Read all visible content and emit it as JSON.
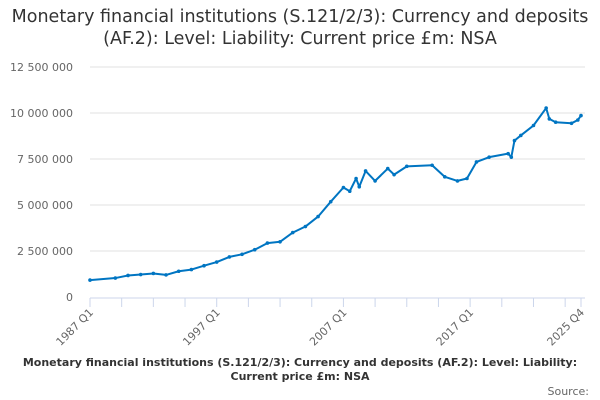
{
  "chart_data": {
    "type": "line",
    "title": "Monetary financial institutions (S.121/2/3): Currency and deposits (AF.2): Level: Liability: Current price £m: NSA",
    "caption": "Monetary financial institutions (S.121/2/3): Currency and deposits (AF.2): Level: Liability: Current price £m: NSA",
    "source_label": "Source:",
    "xlabel": "",
    "ylabel": "",
    "x_range": [
      "1987 Q1",
      "2025 Q4"
    ],
    "x_ticks": [
      "1987 Q1",
      "1997 Q1",
      "2007 Q1",
      "2017 Q1",
      "2025 Q4"
    ],
    "ylim": [
      0,
      12500000
    ],
    "y_ticks": [
      0,
      2500000,
      5000000,
      7500000,
      10000000,
      12500000
    ],
    "y_tick_labels": [
      "0",
      "2 500 000",
      "5 000 000",
      "7 500 000",
      "10 000 000",
      "12 500 000"
    ],
    "grid": true,
    "color": "#0075c2",
    "points": [
      [
        "1987 Q1",
        920000
      ],
      [
        "1989 Q1",
        1030000
      ],
      [
        "1990 Q1",
        1170000
      ],
      [
        "1991 Q1",
        1220000
      ],
      [
        "1992 Q1",
        1280000
      ],
      [
        "1993 Q1",
        1200000
      ],
      [
        "1994 Q1",
        1400000
      ],
      [
        "1995 Q1",
        1490000
      ],
      [
        "1996 Q1",
        1700000
      ],
      [
        "1997 Q1",
        1900000
      ],
      [
        "1998 Q1",
        2180000
      ],
      [
        "1999 Q1",
        2320000
      ],
      [
        "2000 Q1",
        2570000
      ],
      [
        "2001 Q1",
        2930000
      ],
      [
        "2002 Q1",
        3000000
      ],
      [
        "2003 Q1",
        3500000
      ],
      [
        "2004 Q1",
        3830000
      ],
      [
        "2005 Q1",
        4370000
      ],
      [
        "2006 Q1",
        5180000
      ],
      [
        "2007 Q1",
        5950000
      ],
      [
        "2007 Q3",
        5750000
      ],
      [
        "2008 Q1",
        6440000
      ],
      [
        "2008 Q2",
        5990000
      ],
      [
        "2008 Q4",
        6850000
      ],
      [
        "2009 Q3",
        6310000
      ],
      [
        "2010 Q3",
        6980000
      ],
      [
        "2011 Q1",
        6650000
      ],
      [
        "2012 Q1",
        7100000
      ],
      [
        "2014 Q1",
        7160000
      ],
      [
        "2015 Q1",
        6530000
      ],
      [
        "2016 Q1",
        6310000
      ],
      [
        "2016 Q4",
        6440000
      ],
      [
        "2017 Q3",
        7340000
      ],
      [
        "2018 Q3",
        7600000
      ],
      [
        "2020 Q1",
        7790000
      ],
      [
        "2020 Q2",
        7600000
      ],
      [
        "2020 Q3",
        8500000
      ],
      [
        "2021 Q1",
        8780000
      ],
      [
        "2022 Q1",
        9320000
      ],
      [
        "2023 Q1",
        10270000
      ],
      [
        "2023 Q2",
        9680000
      ],
      [
        "2023 Q4",
        9500000
      ],
      [
        "2025 Q1",
        9440000
      ],
      [
        "2025 Q3",
        9620000
      ],
      [
        "2025 Q4",
        9860000
      ]
    ]
  }
}
